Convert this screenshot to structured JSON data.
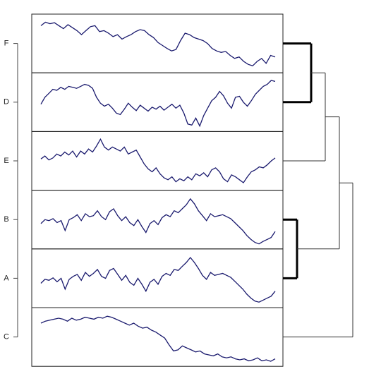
{
  "chart_data": {
    "type": "dendrogram-lines",
    "ylim": [
      0,
      100
    ],
    "series": [
      {
        "name": "F",
        "color": "#1a1a6e",
        "values": [
          88,
          95,
          92,
          94,
          88,
          82,
          90,
          84,
          78,
          70,
          78,
          86,
          88,
          76,
          78,
          73,
          66,
          70,
          61,
          66,
          70,
          76,
          80,
          78,
          70,
          64,
          54,
          48,
          42,
          37,
          40,
          58,
          73,
          70,
          64,
          61,
          58,
          52,
          42,
          37,
          34,
          36,
          28,
          22,
          25,
          16,
          10,
          7,
          16,
          22,
          12,
          28,
          25
        ]
      },
      {
        "name": "D",
        "color": "#1a1a6e",
        "values": [
          48,
          62,
          70,
          78,
          76,
          82,
          78,
          84,
          82,
          80,
          84,
          88,
          86,
          80,
          62,
          50,
          44,
          48,
          40,
          30,
          27,
          38,
          50,
          42,
          35,
          46,
          40,
          34,
          42,
          38,
          44,
          36,
          42,
          48,
          40,
          46,
          30,
          8,
          6,
          20,
          4,
          25,
          40,
          55,
          62,
          74,
          65,
          50,
          40,
          62,
          64,
          52,
          44,
          55,
          68,
          76,
          84,
          88,
          96,
          94
        ]
      },
      {
        "name": "E",
        "color": "#1a1a6e",
        "values": [
          56,
          62,
          54,
          58,
          66,
          62,
          70,
          64,
          72,
          60,
          72,
          66,
          76,
          70,
          82,
          96,
          80,
          74,
          80,
          76,
          72,
          80,
          66,
          70,
          74,
          60,
          46,
          36,
          30,
          38,
          26,
          18,
          14,
          20,
          10,
          16,
          12,
          20,
          14,
          26,
          22,
          28,
          20,
          34,
          38,
          30,
          16,
          10,
          24,
          20,
          14,
          8,
          20,
          30,
          34,
          40,
          38,
          44,
          52,
          58
        ]
      },
      {
        "name": "B",
        "color": "#1a1a6e",
        "values": [
          44,
          52,
          50,
          54,
          46,
          50,
          30,
          52,
          56,
          62,
          50,
          64,
          58,
          60,
          70,
          58,
          52,
          68,
          74,
          60,
          50,
          58,
          46,
          40,
          52,
          38,
          26,
          44,
          50,
          42,
          56,
          62,
          58,
          70,
          66,
          74,
          82,
          94,
          84,
          70,
          60,
          50,
          64,
          58,
          60,
          62,
          58,
          54,
          46,
          38,
          30,
          20,
          12,
          6,
          3,
          8,
          12,
          16,
          28
        ]
      },
      {
        "name": "A",
        "color": "#1a1a6e",
        "values": [
          42,
          50,
          48,
          53,
          45,
          52,
          30,
          50,
          56,
          60,
          48,
          64,
          56,
          62,
          70,
          56,
          52,
          68,
          72,
          60,
          48,
          58,
          44,
          38,
          52,
          40,
          26,
          44,
          50,
          40,
          56,
          62,
          58,
          70,
          68,
          76,
          84,
          94,
          84,
          72,
          58,
          50,
          64,
          58,
          60,
          62,
          58,
          54,
          46,
          38,
          30,
          20,
          12,
          6,
          4,
          8,
          12,
          16,
          26
        ]
      },
      {
        "name": "C",
        "color": "#1a1a6e",
        "values": [
          80,
          84,
          86,
          88,
          90,
          88,
          84,
          90,
          86,
          88,
          92,
          90,
          88,
          92,
          90,
          94,
          92,
          88,
          84,
          80,
          76,
          80,
          74,
          70,
          72,
          66,
          62,
          56,
          50,
          36,
          24,
          26,
          34,
          30,
          26,
          22,
          24,
          18,
          16,
          14,
          18,
          12,
          10,
          12,
          8,
          6,
          8,
          4,
          6,
          10,
          4,
          6,
          3,
          8
        ]
      }
    ],
    "dendrogram": {
      "xlim": [
        0,
        100
      ],
      "merges": [
        {
          "left": 0,
          "right": 1,
          "height": 40,
          "highlight": true
        },
        {
          "left": 3,
          "right": 4,
          "height": 20,
          "highlight": true
        },
        {
          "left": 6,
          "right": 2,
          "height": 60,
          "highlight": false
        },
        {
          "left": 8,
          "right": 7,
          "height": 80,
          "highlight": false
        },
        {
          "left": 9,
          "right": 5,
          "height": 99,
          "highlight": false
        }
      ]
    }
  }
}
